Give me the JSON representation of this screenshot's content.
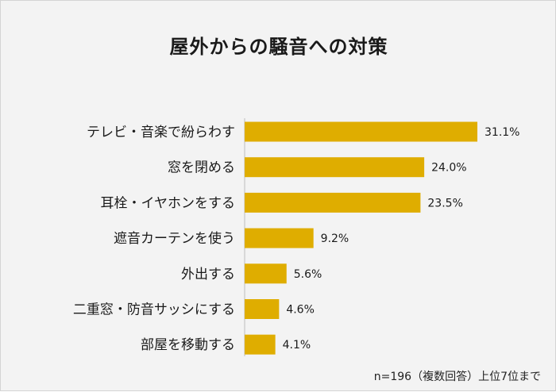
{
  "chart_data": {
    "type": "bar",
    "orientation": "horizontal",
    "title": "屋外からの騒音への対策",
    "categories": [
      "テレビ・音楽で紛らわす",
      "窓を閉める",
      "耳栓・イヤホンをする",
      "遮音カーテンを使う",
      "外出する",
      "二重窓・防音サッシにする",
      "部屋を移動する"
    ],
    "values": [
      31.1,
      24.0,
      23.5,
      9.2,
      5.6,
      4.6,
      4.1
    ],
    "value_labels": [
      "31.1%",
      "24.0%",
      "23.5%",
      "9.2%",
      "5.6%",
      "4.6%",
      "4.1%"
    ],
    "xlabel": "",
    "ylabel": "",
    "xlim": [
      0,
      40
    ],
    "grid": false,
    "legend": "none",
    "bar_color": "#dfad00",
    "footnote": "n=196（複数回答）上位7位まで"
  }
}
